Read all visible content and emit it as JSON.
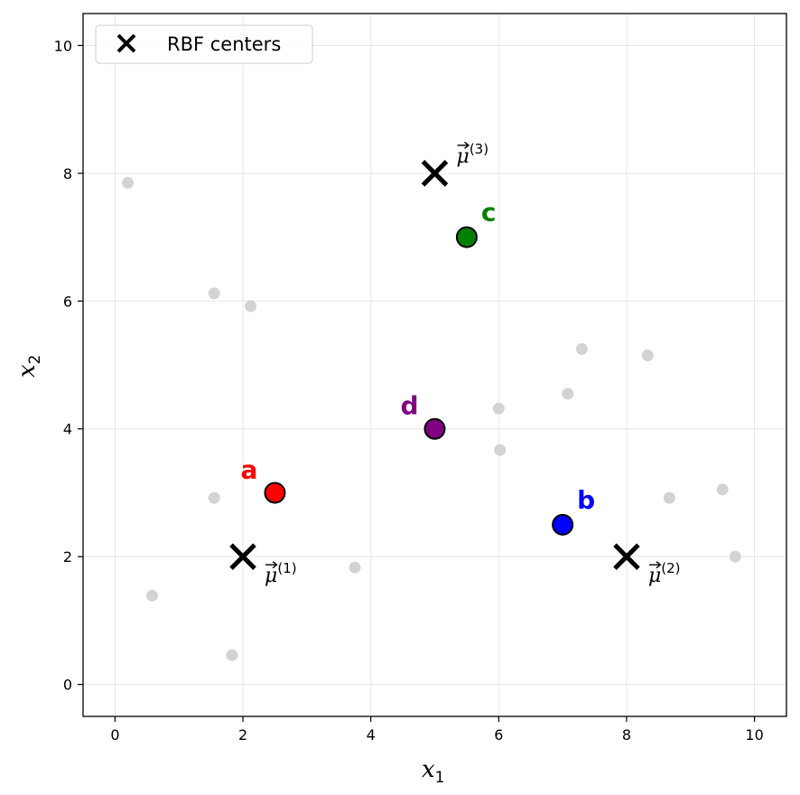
{
  "chart_data": {
    "type": "scatter",
    "xlabel": "x",
    "xlabel_sub": "1",
    "ylabel": "x",
    "ylabel_sub": "2",
    "xlim": [
      -0.5,
      10.5
    ],
    "ylim": [
      -0.5,
      10.5
    ],
    "xticks": [
      0,
      2,
      4,
      6,
      8,
      10
    ],
    "yticks": [
      0,
      2,
      4,
      6,
      8,
      10
    ],
    "xtick_labels": [
      "0",
      "2",
      "4",
      "6",
      "8",
      "10"
    ],
    "ytick_labels": [
      "0",
      "2",
      "4",
      "6",
      "8",
      "10"
    ],
    "grid": true,
    "legend": {
      "placement": "top-left",
      "entries": [
        "RBF centers"
      ]
    },
    "background_points": {
      "color": "#d3d3d3",
      "points": [
        [
          0.2,
          7.85
        ],
        [
          1.55,
          6.12
        ],
        [
          2.12,
          5.92
        ],
        [
          1.55,
          2.92
        ],
        [
          0.58,
          1.39
        ],
        [
          1.83,
          0.46
        ],
        [
          3.75,
          1.83
        ],
        [
          6.0,
          4.32
        ],
        [
          6.02,
          3.67
        ],
        [
          7.08,
          4.55
        ],
        [
          7.3,
          5.25
        ],
        [
          8.33,
          5.15
        ],
        [
          8.67,
          2.92
        ],
        [
          9.5,
          3.05
        ],
        [
          9.7,
          2.0
        ]
      ]
    },
    "centers": {
      "series": "RBF centers",
      "color": "#000000",
      "points": [
        {
          "x": 2,
          "y": 2,
          "label": "μ",
          "sup": "(1)"
        },
        {
          "x": 8,
          "y": 2,
          "label": "μ",
          "sup": "(2)"
        },
        {
          "x": 5,
          "y": 8,
          "label": "μ",
          "sup": "(3)"
        }
      ]
    },
    "highlighted": [
      {
        "label": "a",
        "x": 2.5,
        "y": 3.0,
        "color": "#ff0000"
      },
      {
        "label": "b",
        "x": 7.0,
        "y": 2.5,
        "color": "#0000ff"
      },
      {
        "label": "c",
        "x": 5.5,
        "y": 7.0,
        "color": "#008000"
      },
      {
        "label": "d",
        "x": 5.0,
        "y": 4.0,
        "color": "#800080"
      }
    ]
  }
}
